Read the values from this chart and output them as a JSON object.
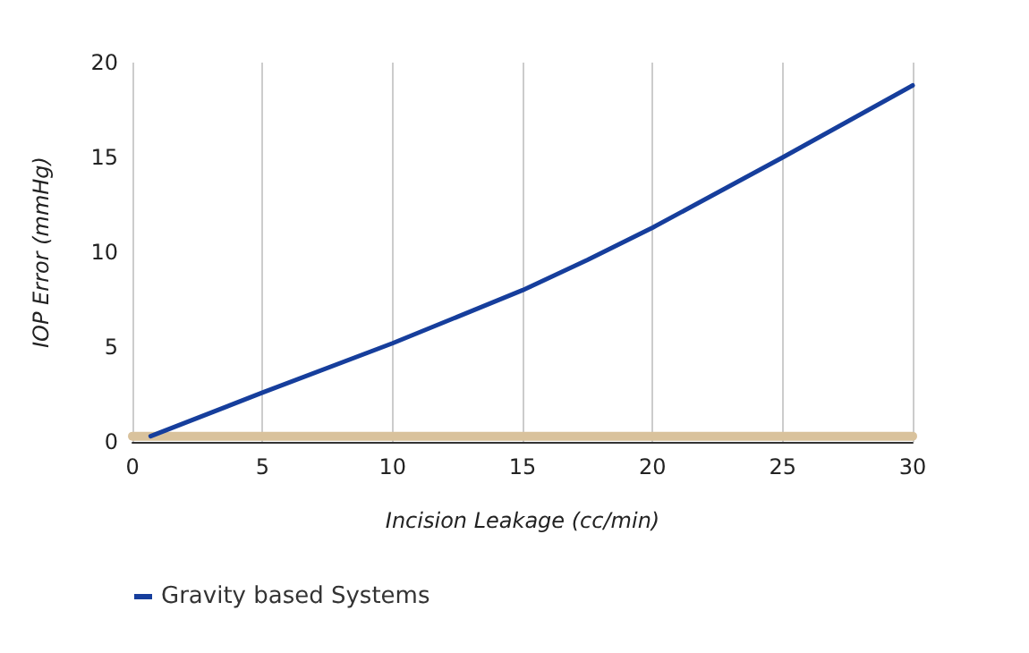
{
  "chart_data": {
    "type": "line",
    "xlabel": "Incision Leakage (cc/min)",
    "ylabel": "IOP Error (mmHg)",
    "series": [
      {
        "name": "Gravity based Systems",
        "color": "#163e9c",
        "x": [
          0.7,
          5,
          10,
          15,
          17.5,
          20,
          25,
          30
        ],
        "values": [
          0.3,
          2.6,
          5.2,
          8,
          9.6,
          11.3,
          15,
          18.8
        ]
      },
      {
        "color": "#d9c29c",
        "x": [
          0,
          30
        ],
        "values": [
          0.3,
          0.3
        ]
      }
    ],
    "xlim": [
      0,
      30
    ],
    "xticks": [
      0,
      5,
      10,
      15,
      20,
      25,
      30
    ],
    "ylim": [
      0,
      20
    ],
    "yticks": [
      0,
      5,
      10,
      15,
      20
    ],
    "grid": "x",
    "legend": "bottom",
    "marker": "none",
    "line_style": "solid"
  }
}
